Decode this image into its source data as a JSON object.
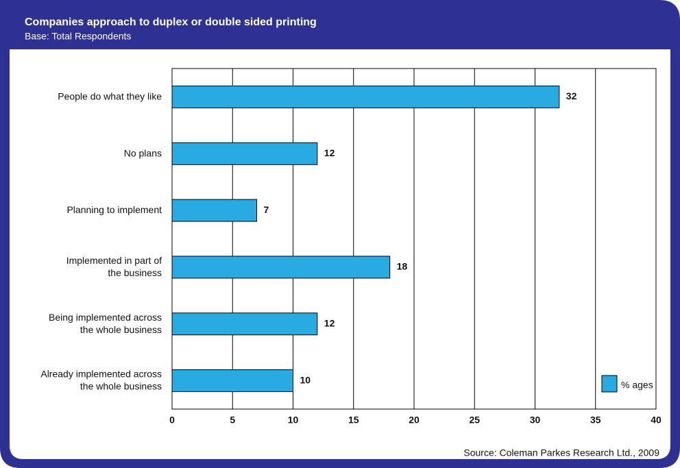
{
  "chart_data": {
    "type": "hbar",
    "title": "Companies approach to duplex or double sided printing",
    "subtitle": "Base: Total Respondents",
    "categories": [
      "People do what they like",
      "No plans",
      "Planning to implement",
      "Implemented in part of\nthe business",
      "Being implemented across\nthe whole business",
      "Already implemented across\nthe whole business"
    ],
    "values": [
      32,
      12,
      7,
      18,
      12,
      10
    ],
    "color": "#29abe2",
    "legend": "% ages",
    "legend_position": "lower right",
    "xlim": [
      0,
      40
    ],
    "xticks": [
      0,
      5,
      10,
      15,
      20,
      25,
      30,
      35,
      40
    ],
    "grid": true,
    "source": "Source: Coleman Parkes Research Ltd., 2009"
  }
}
